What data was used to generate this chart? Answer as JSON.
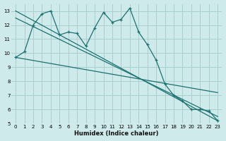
{
  "xlabel": "Humidex (Indice chaleur)",
  "ylabel": "",
  "background_color": "#ceeaea",
  "grid_color": "#aacece",
  "line_color": "#1e7070",
  "xlim": [
    -0.5,
    23.5
  ],
  "ylim": [
    5,
    13.5
  ],
  "yticks": [
    5,
    6,
    7,
    8,
    9,
    10,
    11,
    12,
    13
  ],
  "xticks": [
    0,
    1,
    2,
    3,
    4,
    5,
    6,
    7,
    8,
    9,
    10,
    11,
    12,
    13,
    14,
    15,
    16,
    17,
    18,
    19,
    20,
    21,
    22,
    23
  ],
  "data_x": [
    0,
    1,
    2,
    3,
    4,
    5,
    6,
    7,
    8,
    9,
    10,
    11,
    12,
    13,
    14,
    15,
    16,
    17,
    18,
    19,
    20,
    21,
    22,
    23
  ],
  "data_y": [
    9.7,
    10.1,
    12.0,
    12.8,
    13.0,
    11.3,
    11.5,
    11.4,
    10.5,
    11.8,
    12.9,
    12.2,
    12.4,
    13.2,
    11.5,
    10.6,
    9.5,
    7.8,
    7.0,
    6.6,
    6.0,
    6.0,
    5.9,
    5.2
  ],
  "line1_x": [
    0,
    23
  ],
  "line1_y": [
    13.0,
    5.2
  ],
  "line2_x": [
    0,
    23
  ],
  "line2_y": [
    12.5,
    5.5
  ],
  "line3_x": [
    0,
    23
  ],
  "line3_y": [
    9.7,
    7.2
  ]
}
